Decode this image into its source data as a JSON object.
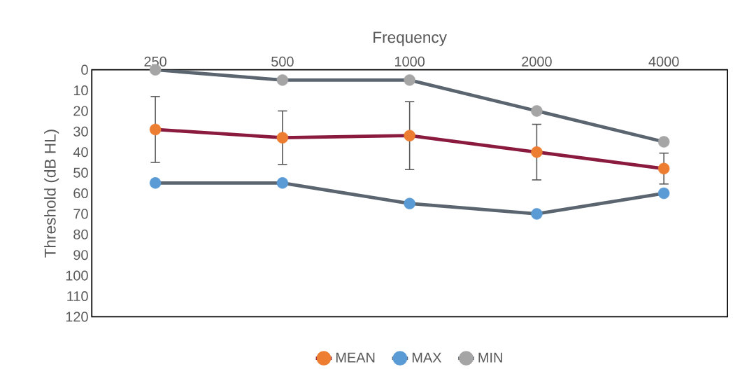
{
  "chart_data": {
    "type": "line",
    "xlabel": "Frequency",
    "ylabel": "Threshold (dB HL)",
    "categories": [
      "250",
      "500",
      "1000",
      "2000",
      "4000"
    ],
    "series": [
      {
        "name": "MEAN",
        "color": "#8b1a3f",
        "colors": [
          "#ed7d31",
          "#ed7d31",
          "#ed7d31",
          "#ed7d31",
          "#ed7d31"
        ],
        "values": [
          29,
          33,
          32,
          40,
          48
        ],
        "errors": [
          16,
          13,
          16.5,
          13.5,
          7.5
        ]
      },
      {
        "name": "MAX",
        "color": "#5a6570",
        "colors": [
          "#5b9bd5",
          "#5b9bd5",
          "#5b9bd5",
          "#5b9bd5",
          "#5b9bd5"
        ],
        "values": [
          55,
          55,
          65,
          70,
          60
        ]
      },
      {
        "name": "MIN",
        "color": "#5a6570",
        "colors": [
          "#a5a5a5",
          "#a5a5a5",
          "#a5a5a5",
          "#a5a5a5",
          "#a5a5a5"
        ],
        "values": [
          0,
          5,
          5,
          20,
          35
        ]
      }
    ],
    "ylim": [
      120,
      0
    ],
    "yticks": [
      0,
      10,
      20,
      30,
      40,
      50,
      60,
      70,
      80,
      90,
      100,
      110,
      120
    ],
    "grid": false,
    "legend": "bottom",
    "marker": "circle",
    "line_style": "solid"
  }
}
